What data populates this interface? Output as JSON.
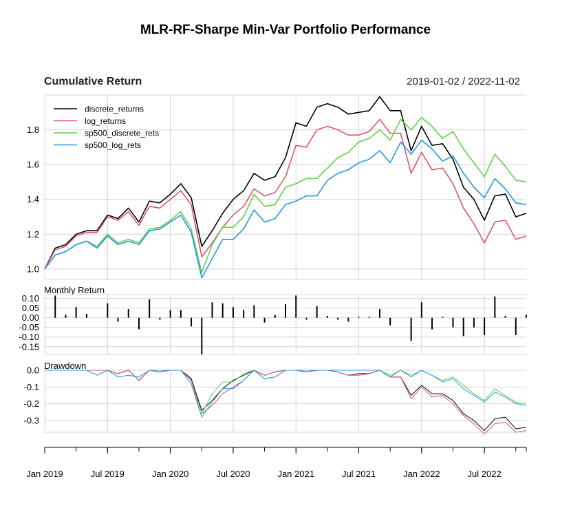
{
  "chart_data": {
    "type": "line",
    "title": "MLR-RF-Sharpe Min-Var Portfolio Performance",
    "date_range": "2019-01-02 / 2022-11-02",
    "x": [
      "2019-01",
      "2019-02",
      "2019-03",
      "2019-04",
      "2019-05",
      "2019-06",
      "2019-07",
      "2019-08",
      "2019-09",
      "2019-10",
      "2019-11",
      "2019-12",
      "2020-01",
      "2020-02",
      "2020-03",
      "2020-04",
      "2020-05",
      "2020-06",
      "2020-07",
      "2020-08",
      "2020-09",
      "2020-10",
      "2020-11",
      "2020-12",
      "2021-01",
      "2021-02",
      "2021-03",
      "2021-04",
      "2021-05",
      "2021-06",
      "2021-07",
      "2021-08",
      "2021-09",
      "2021-10",
      "2021-11",
      "2021-12",
      "2022-01",
      "2022-02",
      "2022-03",
      "2022-04",
      "2022-05",
      "2022-06",
      "2022-07",
      "2022-08",
      "2022-09",
      "2022-10",
      "2022-11"
    ],
    "x_tick_labels": [
      "Jan 2019",
      "Jul 2019",
      "Jan 2020",
      "Jul 2020",
      "Jan 2021",
      "Jul 2021",
      "Jan 2022",
      "Jul 2022"
    ],
    "x_tick_index": [
      0,
      6,
      12,
      18,
      24,
      30,
      36,
      42
    ],
    "x_minor_tick_index": [
      0,
      3,
      6,
      9,
      12,
      15,
      18,
      21,
      24,
      27,
      30,
      33,
      36,
      39,
      42,
      45
    ],
    "cumulative": {
      "label": "Cumulative Return",
      "ylim": [
        0.94,
        2.0
      ],
      "y_ticks": [
        1.0,
        1.2,
        1.4,
        1.6,
        1.8
      ],
      "y_tick_labels": [
        "1.0",
        "1.2",
        "1.4",
        "1.6",
        "1.8"
      ],
      "legend_position": "top-left",
      "series": [
        {
          "name": "discrete_returns",
          "color": "#000000",
          "values": [
            1.0,
            1.12,
            1.14,
            1.2,
            1.22,
            1.22,
            1.31,
            1.29,
            1.35,
            1.27,
            1.39,
            1.38,
            1.43,
            1.49,
            1.41,
            1.13,
            1.22,
            1.32,
            1.4,
            1.45,
            1.55,
            1.51,
            1.53,
            1.64,
            1.84,
            1.82,
            1.93,
            1.95,
            1.93,
            1.89,
            1.9,
            1.91,
            1.99,
            1.91,
            1.91,
            1.68,
            1.82,
            1.71,
            1.72,
            1.63,
            1.47,
            1.4,
            1.28,
            1.42,
            1.43,
            1.3,
            1.32
          ]
        },
        {
          "name": "log_returns",
          "color": "#DF536B",
          "values": [
            1.0,
            1.11,
            1.13,
            1.19,
            1.21,
            1.21,
            1.3,
            1.28,
            1.33,
            1.25,
            1.36,
            1.35,
            1.4,
            1.45,
            1.37,
            1.07,
            1.15,
            1.24,
            1.31,
            1.36,
            1.46,
            1.42,
            1.44,
            1.53,
            1.71,
            1.7,
            1.8,
            1.82,
            1.8,
            1.77,
            1.77,
            1.79,
            1.86,
            1.78,
            1.78,
            1.55,
            1.67,
            1.57,
            1.58,
            1.49,
            1.35,
            1.26,
            1.15,
            1.27,
            1.28,
            1.17,
            1.19
          ]
        },
        {
          "name": "sp500_discrete_rets",
          "color": "#61D04F",
          "values": [
            1.0,
            1.08,
            1.1,
            1.14,
            1.16,
            1.13,
            1.2,
            1.15,
            1.17,
            1.15,
            1.23,
            1.24,
            1.28,
            1.33,
            1.23,
            0.98,
            1.14,
            1.24,
            1.24,
            1.3,
            1.43,
            1.36,
            1.37,
            1.47,
            1.49,
            1.52,
            1.52,
            1.58,
            1.64,
            1.67,
            1.73,
            1.75,
            1.8,
            1.74,
            1.86,
            1.8,
            1.87,
            1.82,
            1.75,
            1.79,
            1.69,
            1.61,
            1.53,
            1.66,
            1.59,
            1.51,
            1.5
          ]
        },
        {
          "name": "sp500_log_rets",
          "color": "#2297E6",
          "values": [
            1.0,
            1.08,
            1.1,
            1.14,
            1.16,
            1.12,
            1.19,
            1.14,
            1.16,
            1.14,
            1.22,
            1.23,
            1.27,
            1.31,
            1.21,
            0.95,
            1.06,
            1.17,
            1.17,
            1.23,
            1.34,
            1.27,
            1.29,
            1.37,
            1.39,
            1.42,
            1.42,
            1.51,
            1.55,
            1.57,
            1.61,
            1.63,
            1.68,
            1.61,
            1.73,
            1.66,
            1.74,
            1.69,
            1.62,
            1.65,
            1.55,
            1.47,
            1.41,
            1.52,
            1.46,
            1.38,
            1.37
          ]
        }
      ]
    },
    "monthly": {
      "label": "Monthly Return",
      "ylim": [
        -0.19,
        0.12
      ],
      "y_ticks": [
        0.1,
        0.05,
        0.0,
        -0.05,
        -0.1,
        -0.15
      ],
      "y_tick_labels": [
        "0.10",
        "0.05",
        "0.00",
        "-0.05",
        "-0.10",
        "-0.15"
      ],
      "series_name": "discrete_returns",
      "values": [
        0.0,
        0.115,
        0.015,
        0.055,
        0.02,
        0.0,
        0.075,
        -0.02,
        0.045,
        -0.06,
        0.095,
        -0.01,
        0.04,
        0.04,
        -0.045,
        -0.19,
        0.08,
        0.075,
        0.055,
        0.04,
        0.065,
        -0.025,
        0.015,
        0.07,
        0.115,
        -0.01,
        0.06,
        0.01,
        -0.01,
        -0.02,
        0.005,
        0.005,
        0.045,
        -0.04,
        0.0,
        -0.12,
        0.08,
        -0.06,
        0.005,
        -0.05,
        -0.095,
        -0.05,
        -0.09,
        0.11,
        0.01,
        -0.09,
        0.015
      ]
    },
    "drawdown": {
      "label": "Drawdown",
      "ylim": [
        -0.37,
        0.0
      ],
      "y_ticks": [
        0.0,
        -0.1,
        -0.2,
        -0.3
      ],
      "y_tick_labels": [
        "0.0",
        "-0.1",
        "-0.2",
        "-0.3"
      ],
      "series": [
        {
          "name": "discrete_returns",
          "color": "#000000",
          "values": [
            0,
            0,
            0,
            0,
            0,
            0,
            0,
            -0.02,
            0,
            -0.06,
            0,
            -0.01,
            0,
            0,
            -0.05,
            -0.24,
            -0.18,
            -0.11,
            -0.06,
            -0.03,
            0,
            -0.03,
            -0.01,
            0,
            0,
            -0.01,
            0,
            0,
            -0.01,
            -0.03,
            -0.02,
            -0.02,
            0,
            -0.04,
            -0.04,
            -0.15,
            -0.09,
            -0.14,
            -0.14,
            -0.18,
            -0.26,
            -0.3,
            -0.36,
            -0.29,
            -0.28,
            -0.35,
            -0.34
          ]
        },
        {
          "name": "log_returns",
          "color": "#DF536B",
          "values": [
            0,
            0,
            0,
            0,
            0,
            0,
            0,
            -0.02,
            0,
            -0.06,
            0,
            -0.01,
            0,
            0,
            -0.06,
            -0.26,
            -0.21,
            -0.14,
            -0.1,
            -0.06,
            0,
            -0.03,
            -0.01,
            0,
            0,
            -0.01,
            0,
            0,
            -0.01,
            -0.03,
            -0.03,
            -0.02,
            0,
            -0.04,
            -0.04,
            -0.17,
            -0.1,
            -0.16,
            -0.15,
            -0.2,
            -0.27,
            -0.32,
            -0.38,
            -0.32,
            -0.31,
            -0.37,
            -0.36
          ]
        },
        {
          "name": "sp500_discrete_rets",
          "color": "#61D04F",
          "values": [
            0,
            0,
            0,
            0,
            0,
            -0.03,
            0,
            -0.04,
            -0.03,
            -0.04,
            0,
            0,
            0,
            0,
            -0.08,
            -0.26,
            -0.14,
            -0.07,
            -0.07,
            -0.02,
            0,
            -0.05,
            -0.04,
            0,
            0,
            0,
            0,
            0,
            0,
            0,
            0,
            0,
            0,
            -0.03,
            0,
            -0.03,
            0,
            -0.03,
            -0.06,
            -0.04,
            -0.09,
            -0.14,
            -0.18,
            -0.11,
            -0.15,
            -0.19,
            -0.2
          ]
        },
        {
          "name": "sp500_log_rets",
          "color": "#2297E6",
          "values": [
            0,
            0,
            0,
            0,
            0,
            -0.03,
            0,
            -0.04,
            -0.03,
            -0.04,
            0,
            0,
            0,
            0,
            -0.08,
            -0.28,
            -0.19,
            -0.11,
            -0.11,
            -0.06,
            0,
            -0.05,
            -0.04,
            0,
            0,
            0,
            0,
            0,
            0,
            0,
            0,
            0,
            0,
            -0.04,
            0,
            -0.04,
            0,
            -0.03,
            -0.07,
            -0.05,
            -0.11,
            -0.15,
            -0.19,
            -0.13,
            -0.16,
            -0.2,
            -0.21
          ]
        }
      ]
    }
  }
}
